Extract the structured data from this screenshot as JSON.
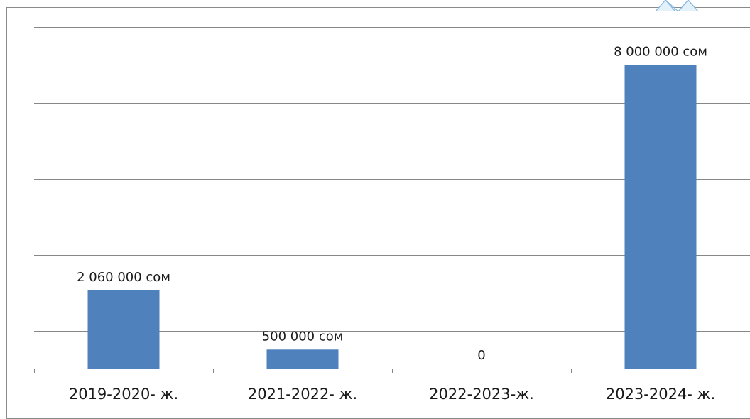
{
  "chart_data": {
    "type": "bar",
    "categories": [
      "2019-2020- ж.",
      "2021-2022- ж.",
      "2022-2023-ж.",
      "2023-2024- ж."
    ],
    "values": [
      2060000,
      500000,
      0,
      8000000
    ],
    "data_labels": [
      "2 060 000 сом",
      "500 000 сом",
      "0",
      "8 000 000 сом"
    ],
    "ylim": [
      0,
      9000000
    ],
    "grid": true,
    "legend": "none",
    "bar_color": "#4f81bd",
    "grid_color": "#878787"
  }
}
